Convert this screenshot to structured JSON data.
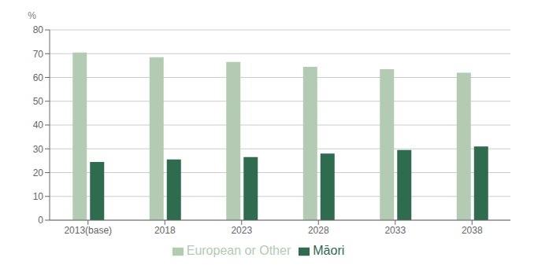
{
  "chart_data": {
    "type": "bar",
    "categories": [
      "2013(base)",
      "2018",
      "2023",
      "2028",
      "2033",
      "2038"
    ],
    "series": [
      {
        "name": "European or Other",
        "color": "#b2cbb2",
        "values": [
          70.5,
          68.5,
          66.5,
          64.5,
          63.5,
          62.0
        ]
      },
      {
        "name": "Māori",
        "color": "#2e6b4f",
        "values": [
          24.5,
          25.5,
          26.5,
          28.0,
          29.5,
          31.0
        ]
      }
    ],
    "y_label": "%",
    "ylim": [
      0,
      80
    ],
    "yticks": [
      0,
      10,
      20,
      30,
      40,
      50,
      60,
      70,
      80
    ],
    "grid": true,
    "legend": "bottom"
  }
}
